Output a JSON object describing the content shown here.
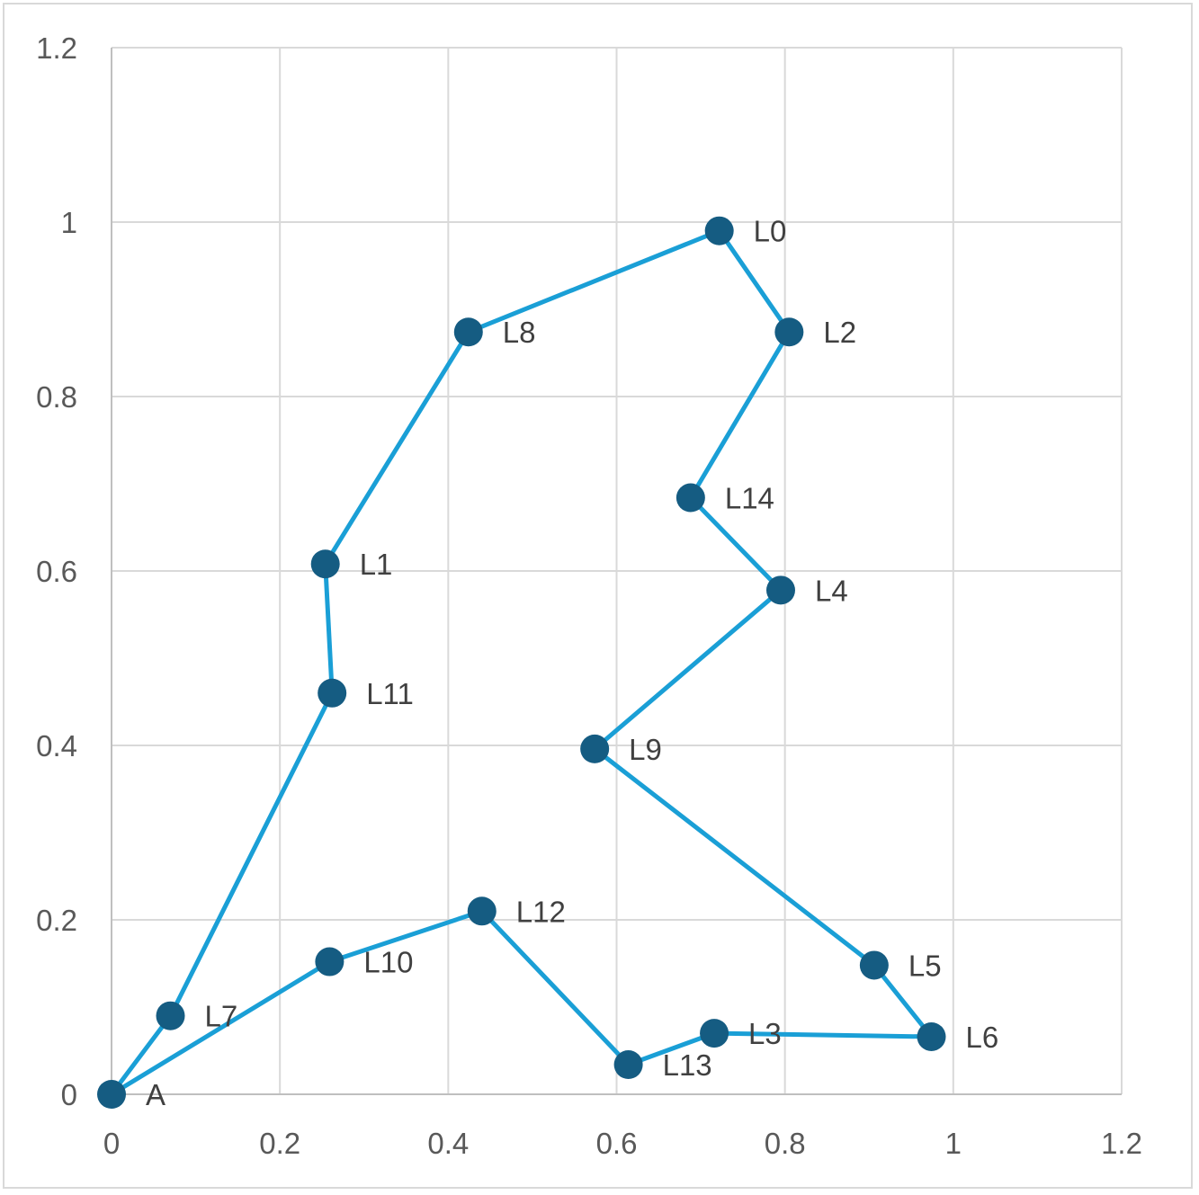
{
  "chart_data": {
    "type": "scatter",
    "title": "",
    "xlabel": "",
    "ylabel": "",
    "xlim": [
      0,
      1.2
    ],
    "ylim": [
      0,
      1.2
    ],
    "x_ticks": [
      "0",
      "0.2",
      "0.4",
      "0.6",
      "0.8",
      "1",
      "1.2"
    ],
    "y_ticks": [
      "0",
      "0.2",
      "0.4",
      "0.6",
      "0.8",
      "1",
      "1.2"
    ],
    "grid": true,
    "line_color": "#1a9fd6",
    "marker_color": "#155c82",
    "points": [
      {
        "label": "A",
        "x": 0.0,
        "y": 0.0
      },
      {
        "label": "L7",
        "x": 0.07,
        "y": 0.09
      },
      {
        "label": "L11",
        "x": 0.262,
        "y": 0.46
      },
      {
        "label": "L1",
        "x": 0.254,
        "y": 0.608
      },
      {
        "label": "L8",
        "x": 0.424,
        "y": 0.874
      },
      {
        "label": "L0",
        "x": 0.722,
        "y": 0.99
      },
      {
        "label": "L2",
        "x": 0.805,
        "y": 0.874
      },
      {
        "label": "L14",
        "x": 0.688,
        "y": 0.684
      },
      {
        "label": "L4",
        "x": 0.795,
        "y": 0.578
      },
      {
        "label": "L9",
        "x": 0.574,
        "y": 0.396
      },
      {
        "label": "L5",
        "x": 0.906,
        "y": 0.148
      },
      {
        "label": "L6",
        "x": 0.974,
        "y": 0.066
      },
      {
        "label": "L3",
        "x": 0.716,
        "y": 0.07
      },
      {
        "label": "L13",
        "x": 0.614,
        "y": 0.034
      },
      {
        "label": "L12",
        "x": 0.44,
        "y": 0.21
      },
      {
        "label": "L10",
        "x": 0.259,
        "y": 0.152
      },
      {
        "label": "A",
        "x": 0.0,
        "y": 0.0
      }
    ]
  }
}
